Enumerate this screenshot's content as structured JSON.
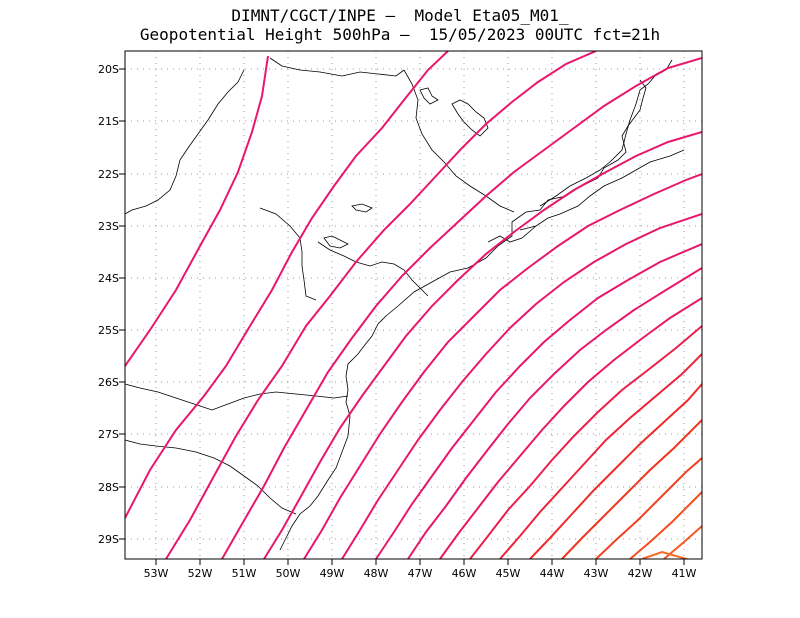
{
  "header": {
    "line1": "DIMNT/CGCT/INPE –  Model Eta05_M01_",
    "line2": "Geopotential Height 500hPa –  15/05/2023 00UTC fct=21h"
  },
  "map": {
    "lat_labels": [
      "20S",
      "21S",
      "22S",
      "23S",
      "24S",
      "25S",
      "26S",
      "27S",
      "28S",
      "29S"
    ],
    "lon_labels": [
      "53W",
      "52W",
      "51W",
      "50W",
      "49W",
      "48W",
      "47W",
      "46W",
      "45W",
      "44W",
      "43W",
      "42W",
      "41W"
    ],
    "lon_range": [
      -53.6,
      -40.5
    ],
    "lat_range": [
      -29.4,
      -19.7
    ],
    "grid": true,
    "contour_colors": [
      "#e8176c",
      "#e8176c",
      "#e8176c",
      "#e8176c",
      "#e8176c",
      "#e8176c",
      "#e8176c",
      "#e8176c",
      "#e8176c",
      "#ea1a5a",
      "#ec1e4a",
      "#ee2238",
      "#ef2a2a",
      "#f0341f",
      "#f24020",
      "#f44c20",
      "#f55a22",
      "#f66824"
    ]
  }
}
